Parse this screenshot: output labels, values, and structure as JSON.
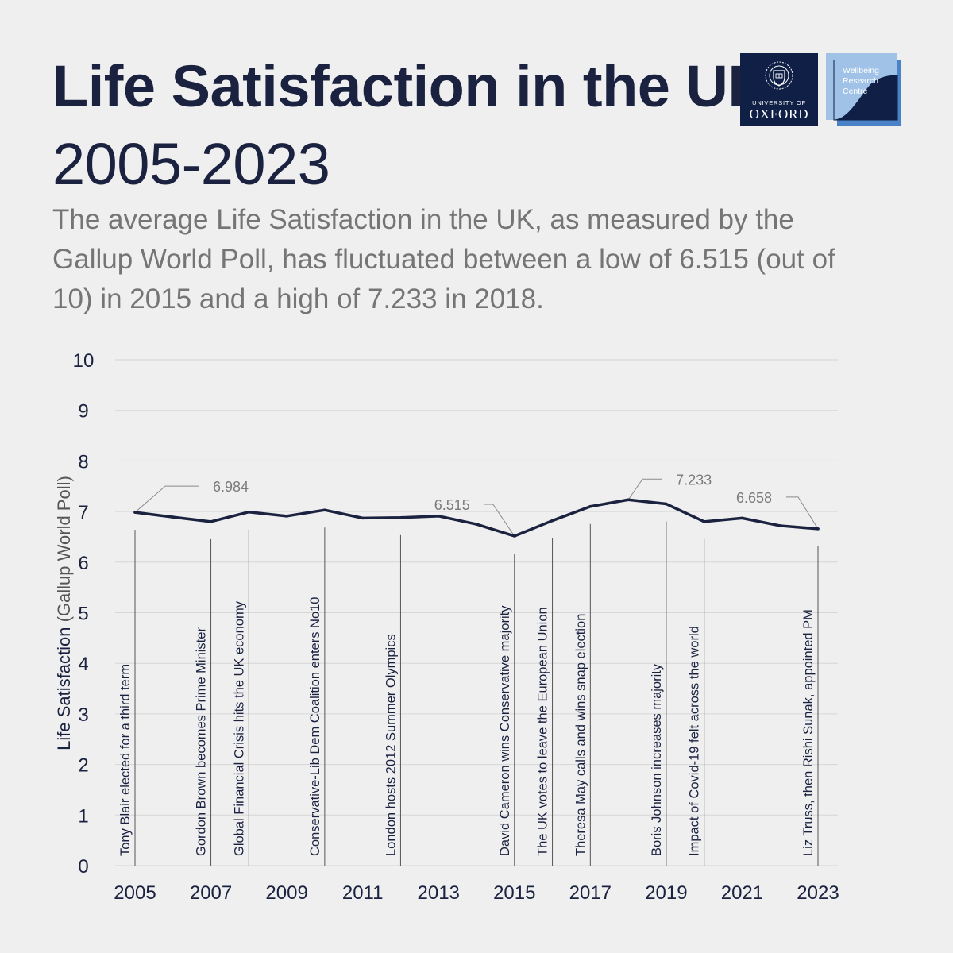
{
  "header": {
    "title_bold": "Life Satisfaction in the UK,",
    "title_light": "2005-2023",
    "subtitle": "The average Life Satisfaction in the UK, as measured by the Gallup World Poll, has fluctuated between a low of 6.515 (out of 10) in 2015 and a high of 7.233 in 2018."
  },
  "logos": {
    "oxford_line1": "UNIVERSITY OF",
    "oxford_line2": "OXFORD",
    "wrc_lines": [
      "Wellbeing",
      "Research",
      "Centre"
    ]
  },
  "colors": {
    "background": "#efefef",
    "title": "#1b2240",
    "line": "#1b2240",
    "grid": "#d6d6d6",
    "annotation": "#7a7a7a",
    "oxford_blue": "#0f1f45",
    "wrc_light": "#9fc2e6",
    "wrc_dark": "#4a82c8"
  },
  "chart_data": {
    "type": "line",
    "ylabel_main": "Life Satisfaction",
    "ylabel_sub": "(Gallup World Poll)",
    "ylim": [
      0,
      10
    ],
    "yticks": [
      0,
      1,
      2,
      3,
      4,
      5,
      6,
      7,
      8,
      9,
      10
    ],
    "xlim": [
      2005,
      2023
    ],
    "xticks": [
      2005,
      2007,
      2009,
      2011,
      2013,
      2015,
      2017,
      2019,
      2021,
      2023
    ],
    "grid": true,
    "series": [
      {
        "name": "Life Satisfaction",
        "x": [
          2005,
          2006,
          2007,
          2008,
          2009,
          2010,
          2011,
          2012,
          2013,
          2014,
          2015,
          2016,
          2017,
          2018,
          2019,
          2020,
          2021,
          2022,
          2023
        ],
        "values": [
          6.984,
          6.89,
          6.8,
          6.99,
          6.91,
          7.03,
          6.87,
          6.88,
          6.91,
          6.75,
          6.515,
          6.82,
          7.1,
          7.233,
          7.15,
          6.8,
          6.87,
          6.72,
          6.658
        ]
      }
    ],
    "labels": [
      {
        "x": 2005,
        "text": "6.984"
      },
      {
        "x": 2015,
        "text": "6.515"
      },
      {
        "x": 2018,
        "text": "7.233"
      },
      {
        "x": 2023,
        "text": "6.658"
      }
    ],
    "events": [
      {
        "x": 2005,
        "text": "Tony Blair elected for a third term"
      },
      {
        "x": 2007,
        "text": "Gordon Brown becomes Prime Minister"
      },
      {
        "x": 2008,
        "text": "Global Financial Crisis hits the UK economy"
      },
      {
        "x": 2010,
        "text": "Conservative-Lib Dem Coalition enters No10"
      },
      {
        "x": 2012,
        "text": "London hosts 2012 Summer Olympics"
      },
      {
        "x": 2015,
        "text": "David Cameron wins Conservative majority"
      },
      {
        "x": 2016,
        "text": "The UK votes to leave the European Union"
      },
      {
        "x": 2017,
        "text": "Theresa May calls and wins snap election"
      },
      {
        "x": 2019,
        "text": "Boris Johnson increases majority"
      },
      {
        "x": 2020,
        "text": "Impact of Covid-19 felt across the world"
      },
      {
        "x": 2023,
        "text": "Liz Truss, then Rishi Sunak, appointed PM"
      }
    ]
  }
}
